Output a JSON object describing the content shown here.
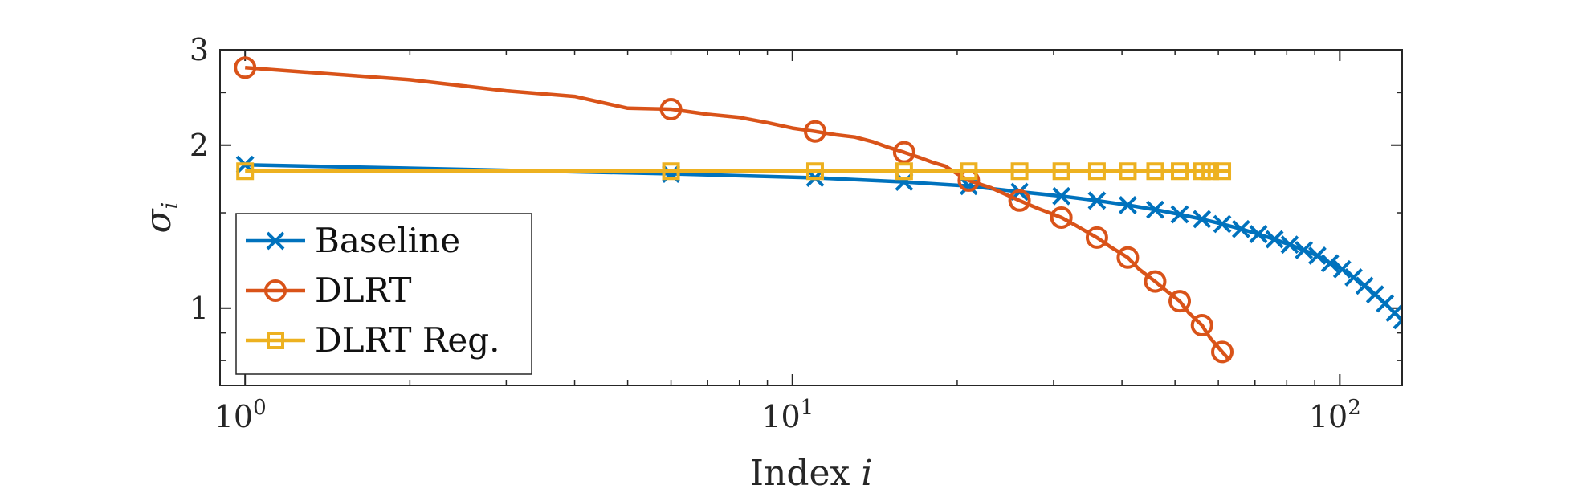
{
  "chart_data": {
    "type": "line",
    "xscale": "log",
    "yscale": "log",
    "xlim": [
      0.9,
      130
    ],
    "ylim": [
      0.72,
      3.0
    ],
    "xticks": [
      1,
      10,
      100
    ],
    "xtick_labels": [
      {
        "base": "10",
        "exp": "0"
      },
      {
        "base": "10",
        "exp": "1"
      },
      {
        "base": "10",
        "exp": "2"
      }
    ],
    "yticks": [
      1,
      2,
      3
    ],
    "ytick_labels": [
      "1",
      "2",
      "3"
    ],
    "xlabel": {
      "text": "Index ",
      "var": "i"
    },
    "ylabel": {
      "sym": "σ",
      "sub": "i"
    },
    "legend": {
      "placement": "lower-left"
    },
    "grid": false,
    "series": [
      {
        "name": "Baseline",
        "color": "#0072BD",
        "marker": "x",
        "x": [
          1,
          6,
          11,
          16,
          21,
          26,
          31,
          36,
          41,
          46,
          51,
          56,
          61,
          66,
          71,
          76,
          81,
          86,
          91,
          96,
          101,
          106,
          111,
          116,
          121,
          126,
          130
        ],
        "y": [
          1.84,
          1.77,
          1.74,
          1.71,
          1.68,
          1.64,
          1.61,
          1.58,
          1.55,
          1.52,
          1.49,
          1.46,
          1.43,
          1.4,
          1.37,
          1.34,
          1.31,
          1.28,
          1.25,
          1.21,
          1.18,
          1.14,
          1.1,
          1.06,
          1.02,
          0.98,
          0.95
        ],
        "marker_x": [
          1,
          6,
          11,
          16,
          21,
          26,
          31,
          36,
          41,
          46,
          51,
          56,
          61,
          66,
          71,
          76,
          81,
          86,
          91,
          96,
          101,
          106,
          111,
          116,
          121,
          126,
          130
        ]
      },
      {
        "name": "DLRT",
        "color": "#D95319",
        "marker": "o",
        "x": [
          1,
          2,
          3,
          4,
          5,
          6,
          7,
          8,
          9,
          10,
          11,
          12,
          13,
          14,
          15,
          16,
          17,
          18,
          19,
          20,
          21,
          23,
          26,
          28,
          31,
          33,
          36,
          38,
          41,
          43,
          46,
          48,
          51,
          53,
          56,
          58,
          61,
          63
        ],
        "y": [
          2.78,
          2.64,
          2.52,
          2.46,
          2.34,
          2.33,
          2.28,
          2.25,
          2.2,
          2.15,
          2.12,
          2.09,
          2.07,
          2.03,
          1.98,
          1.94,
          1.9,
          1.86,
          1.83,
          1.77,
          1.72,
          1.67,
          1.58,
          1.53,
          1.47,
          1.42,
          1.35,
          1.3,
          1.24,
          1.18,
          1.12,
          1.08,
          1.03,
          0.98,
          0.93,
          0.88,
          0.83,
          0.8
        ],
        "marker_x": [
          1,
          6,
          11,
          16,
          21,
          26,
          31,
          36,
          41,
          46,
          51,
          56,
          61
        ]
      },
      {
        "name": "DLRT Reg.",
        "color": "#EDB120",
        "marker": "s",
        "x": [
          1,
          63
        ],
        "y": [
          1.79,
          1.79
        ],
        "marker_x": [
          1,
          6,
          11,
          16,
          21,
          26,
          31,
          36,
          41,
          46,
          51,
          56,
          58,
          61
        ]
      }
    ]
  }
}
